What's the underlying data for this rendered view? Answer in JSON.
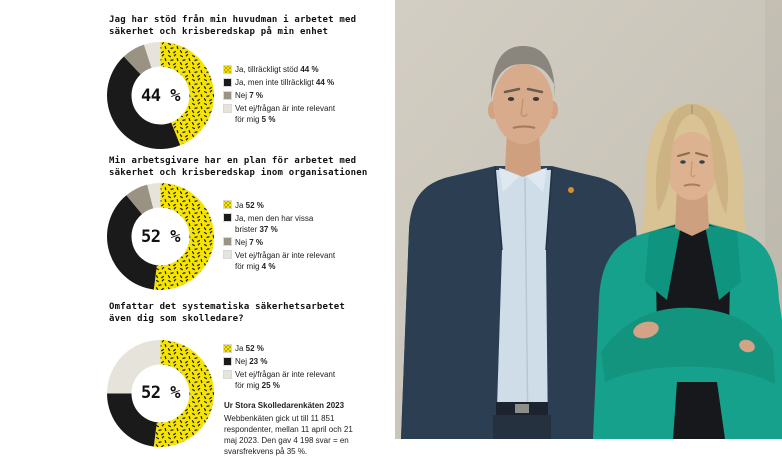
{
  "page": {
    "background": "#ffffff"
  },
  "colors": {
    "yellow": "#f5e303",
    "black": "#1a1a1a",
    "gray": "#9a9383",
    "light_gray": "#e5e3da",
    "teal_jacket": "#16a18c",
    "navy_suit": "#2e4155",
    "wall_beige": "#cbc6ba"
  },
  "chart_data": [
    {
      "type": "donut",
      "title": "Jag har stöd från min huvudman i arbetet med\nsäkerhet och krisberedskap på min enhet",
      "center_label": "44 %",
      "legend_position": "right",
      "segments": [
        {
          "label": "Ja, tillräckligt stöd",
          "value": 44,
          "value_label": "44 %",
          "color": "#f5e303",
          "pattern": true
        },
        {
          "label": "Ja, men inte tillräckligt",
          "value": 44,
          "value_label": "44 %",
          "color": "#1a1a1a",
          "pattern": false
        },
        {
          "label": "Nej",
          "value": 7,
          "value_label": "7 %",
          "color": "#9a9383",
          "pattern": false
        },
        {
          "label": "Vet ej/frågan är inte relevant\nför mig",
          "value": 5,
          "value_label": "5 %",
          "color": "#e5e3da",
          "pattern": false
        }
      ]
    },
    {
      "type": "donut",
      "title": "Min arbetsgivare har en plan för arbetet med\nsäkerhet och krisberedskap inom organisationen",
      "center_label": "52 %",
      "legend_position": "right",
      "segments": [
        {
          "label": "Ja",
          "value": 52,
          "value_label": "52 %",
          "color": "#f5e303",
          "pattern": true
        },
        {
          "label": "Ja, men den har vissa\nbrister",
          "value": 37,
          "value_label": "37 %",
          "color": "#1a1a1a",
          "pattern": false
        },
        {
          "label": "Nej",
          "value": 7,
          "value_label": "7 %",
          "color": "#9a9383",
          "pattern": false
        },
        {
          "label": "Vet ej/frågan är inte relevant\nför mig",
          "value": 4,
          "value_label": "4 %",
          "color": "#e5e3da",
          "pattern": false
        }
      ]
    },
    {
      "type": "donut",
      "title": "Omfattar det systematiska säkerhetsarbetet\näven dig som skolledare?",
      "center_label": "52 %",
      "legend_position": "right",
      "segments": [
        {
          "label": "Ja",
          "value": 52,
          "value_label": "52 %",
          "color": "#f5e303",
          "pattern": true
        },
        {
          "label": "Nej",
          "value": 23,
          "value_label": "23 %",
          "color": "#1a1a1a",
          "pattern": false
        },
        {
          "label": "Vet ej/frågan är inte relevant\nför mig",
          "value": 25,
          "value_label": "25 %",
          "color": "#e5e3da",
          "pattern": false
        }
      ]
    }
  ],
  "footnote": {
    "title": "Ur Stora Skolledarenkäten 2023",
    "text": "Webbenkäten gick ut till 11 851 respondenter, mellan 11 april och 21 maj 2023. Den gav 4 198 svar = en svarsfrekvens på 35 %."
  },
  "photo": {
    "description": "Two school leaders standing against a beige wall: a gray-haired man in a dark blue suit with a light blue open-collar shirt, and a blonde woman in a teal blazer over a black top with her arms crossed."
  }
}
